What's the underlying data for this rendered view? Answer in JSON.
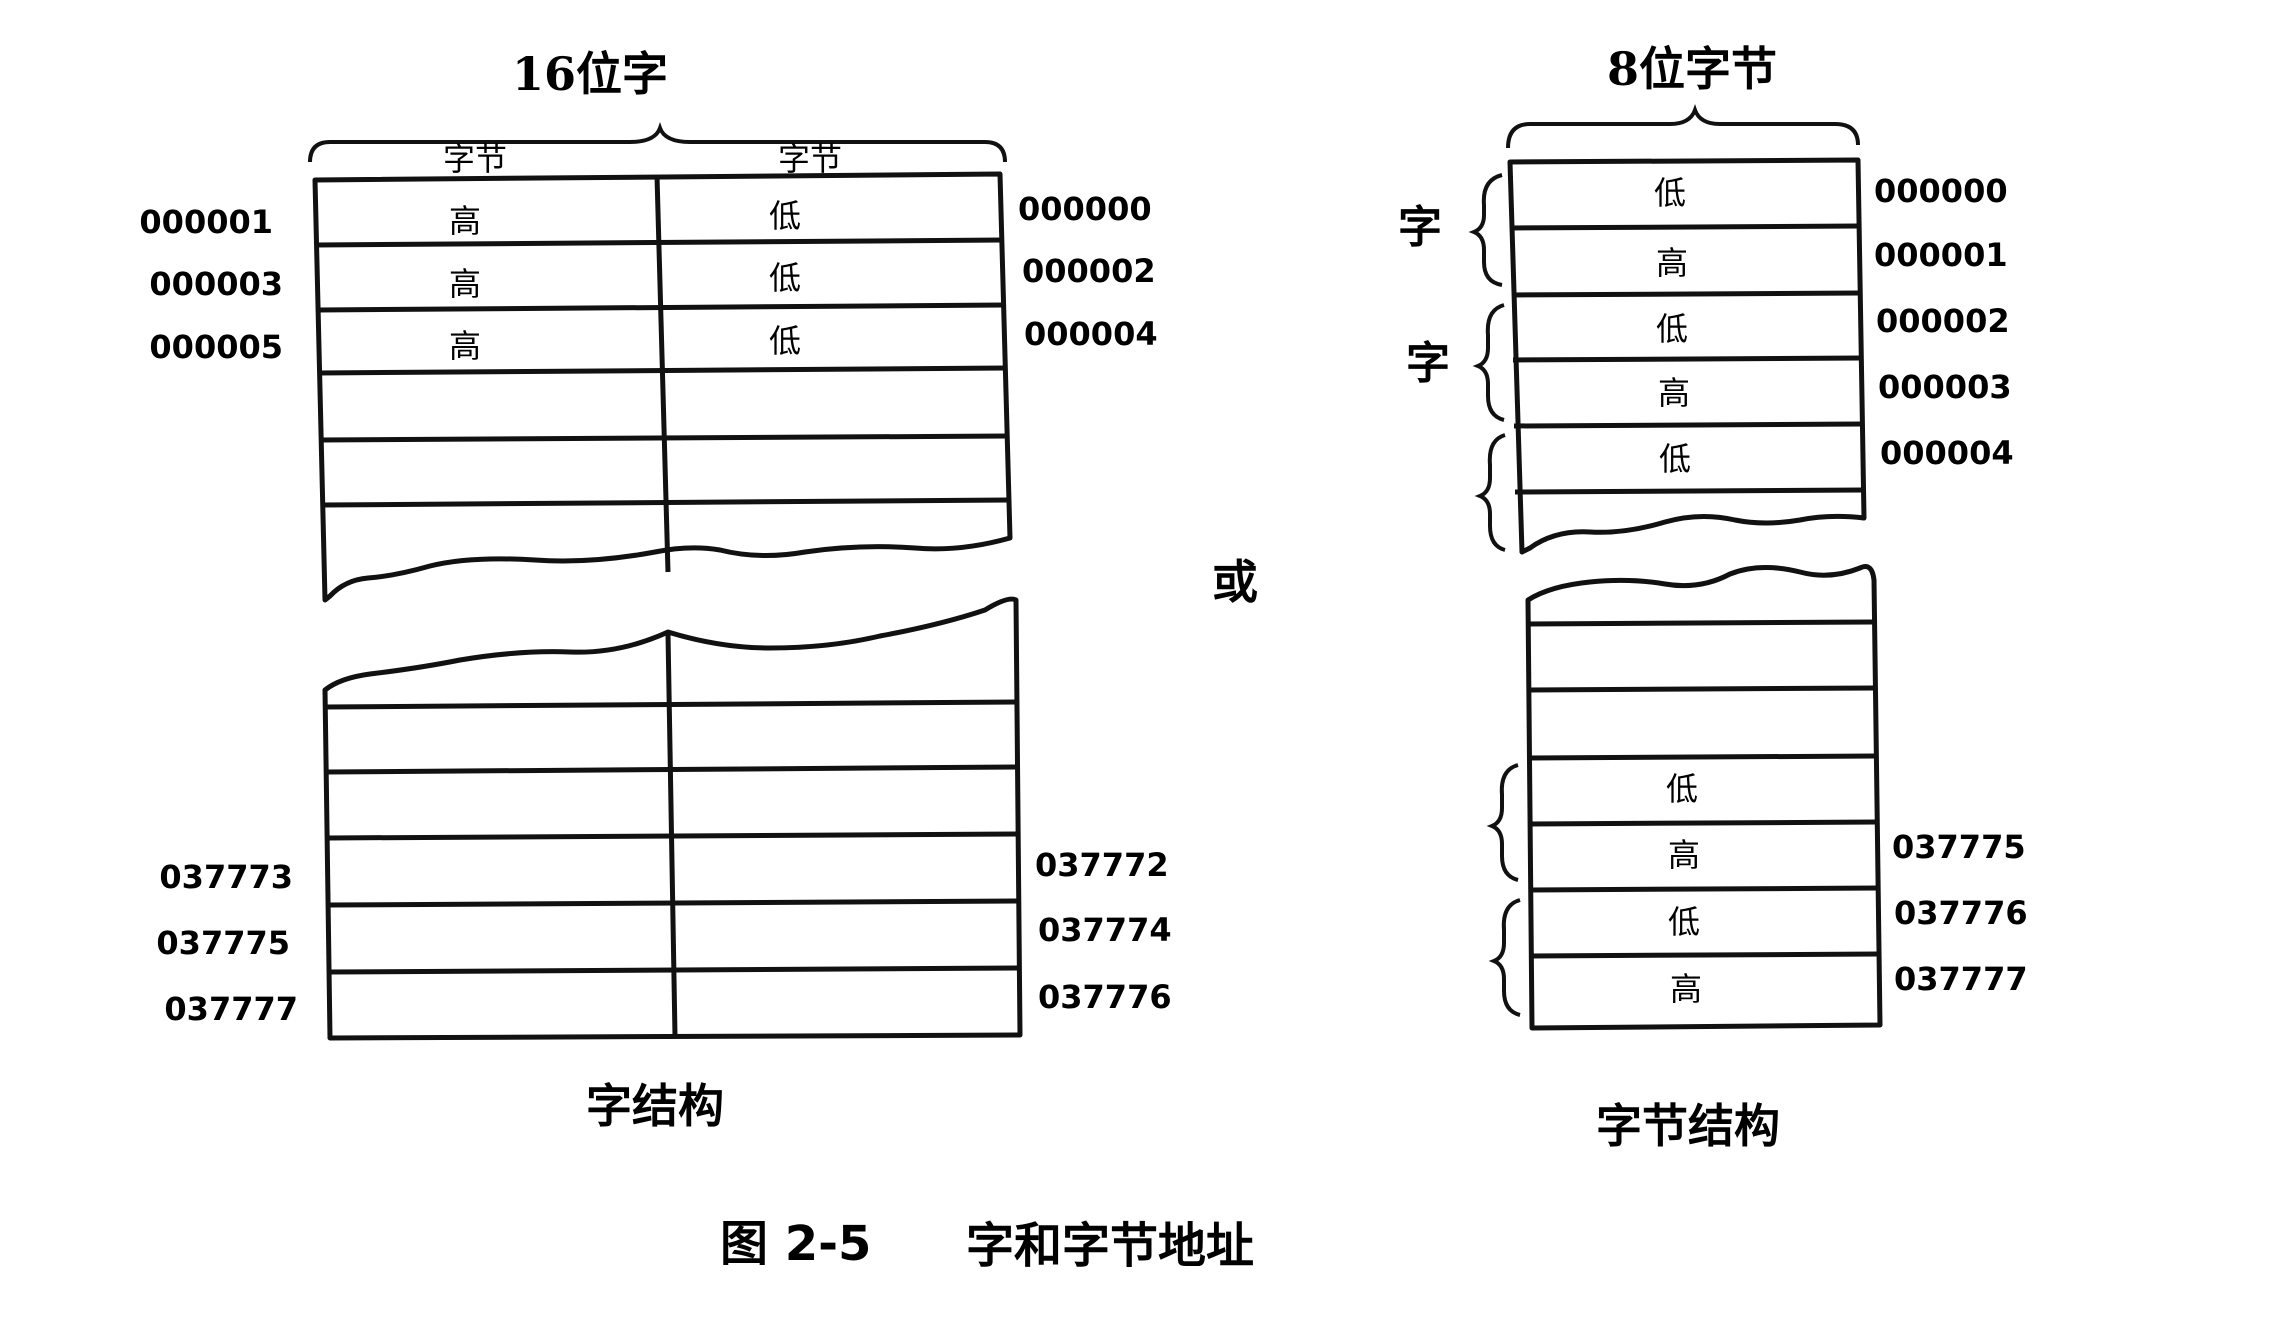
{
  "figure": {
    "caption_number": "图  2-5",
    "caption_title": "字和字节地址",
    "separator": "或"
  },
  "word_structure": {
    "title": "16位字",
    "label": "字结构",
    "col_headers": [
      "字节",
      "字节"
    ],
    "top_rows": [
      {
        "high": "高",
        "low": "低",
        "addr_left": "000001",
        "addr_right": "000000"
      },
      {
        "high": "高",
        "low": "低",
        "addr_left": "000003",
        "addr_right": "000002"
      },
      {
        "high": "高",
        "low": "低",
        "addr_left": "000005",
        "addr_right": "000004"
      }
    ],
    "bottom_rows": [
      {
        "addr_left": "037773",
        "addr_right": "037772"
      },
      {
        "addr_left": "037775",
        "addr_right": "037774"
      },
      {
        "addr_left": "037777",
        "addr_right": "037776"
      }
    ]
  },
  "byte_structure": {
    "title": "8位字节",
    "label": "字节结构",
    "word_label": "字",
    "top_cells": [
      {
        "text": "低",
        "addr": "000000"
      },
      {
        "text": "高",
        "addr": "000001"
      },
      {
        "text": "低",
        "addr": "000002"
      },
      {
        "text": "高",
        "addr": "000003"
      },
      {
        "text": "低",
        "addr": "000004"
      }
    ],
    "bottom_cells": [
      {
        "text": "低",
        "addr": ""
      },
      {
        "text": "高",
        "addr": "037775"
      },
      {
        "text": "低",
        "addr": "037776"
      },
      {
        "text": "高",
        "addr": "037777"
      }
    ]
  }
}
